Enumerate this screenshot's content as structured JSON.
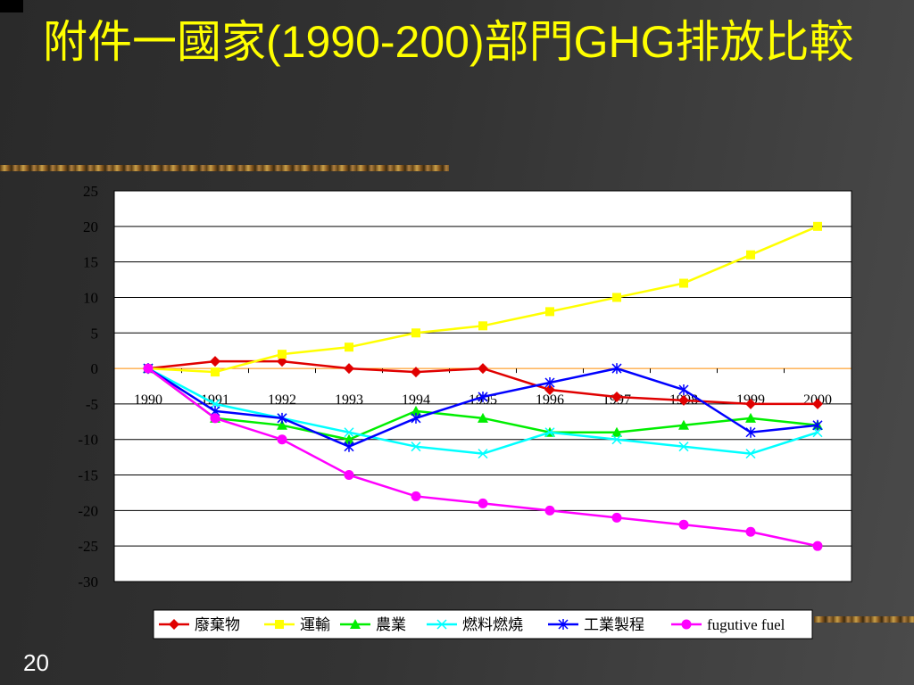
{
  "slide": {
    "title": "附件一國家(1990-200)部門GHG排放比較",
    "page_number": "20"
  },
  "chart_data": {
    "type": "line",
    "x": [
      "1990",
      "1991",
      "1992",
      "1993",
      "1994",
      "1995",
      "1996",
      "1997",
      "1998",
      "1999",
      "2000"
    ],
    "ylim": [
      -30,
      25
    ],
    "yticks": [
      25,
      20,
      15,
      10,
      5,
      0,
      -5,
      -10,
      -15,
      -20,
      -25,
      -30
    ],
    "grid": true,
    "legend_position": "bottom",
    "series": [
      {
        "name": "廢棄物",
        "color": "#e00000",
        "marker": "diamond",
        "values": [
          0,
          1,
          1,
          0,
          -0.5,
          0,
          -3,
          -4,
          -4.5,
          -5,
          -5
        ]
      },
      {
        "name": "運輸",
        "color": "#ffff00",
        "marker": "square",
        "values": [
          0,
          -0.5,
          2,
          3,
          5,
          6,
          8,
          10,
          12,
          16,
          20
        ]
      },
      {
        "name": "農業",
        "color": "#00ee00",
        "marker": "triangle",
        "values": [
          0,
          -7,
          -8,
          -10,
          -6,
          -7,
          -9,
          -9,
          -8,
          -7,
          -8
        ]
      },
      {
        "name": "燃料燃燒",
        "color": "#00ffff",
        "marker": "x",
        "values": [
          0,
          -5,
          -7,
          -9,
          -11,
          -12,
          -9,
          -10,
          -11,
          -12,
          -9
        ]
      },
      {
        "name": "工業製程",
        "color": "#0000ff",
        "marker": "star",
        "values": [
          0,
          -6,
          -7,
          -11,
          -7,
          -4,
          -2,
          0,
          -3,
          -9,
          -8
        ]
      },
      {
        "name": "fugutive fuel",
        "color": "#ff00ff",
        "marker": "circle",
        "values": [
          0,
          -7,
          -10,
          -15,
          -18,
          -19,
          -20,
          -21,
          -22,
          -23,
          -25
        ]
      }
    ]
  }
}
